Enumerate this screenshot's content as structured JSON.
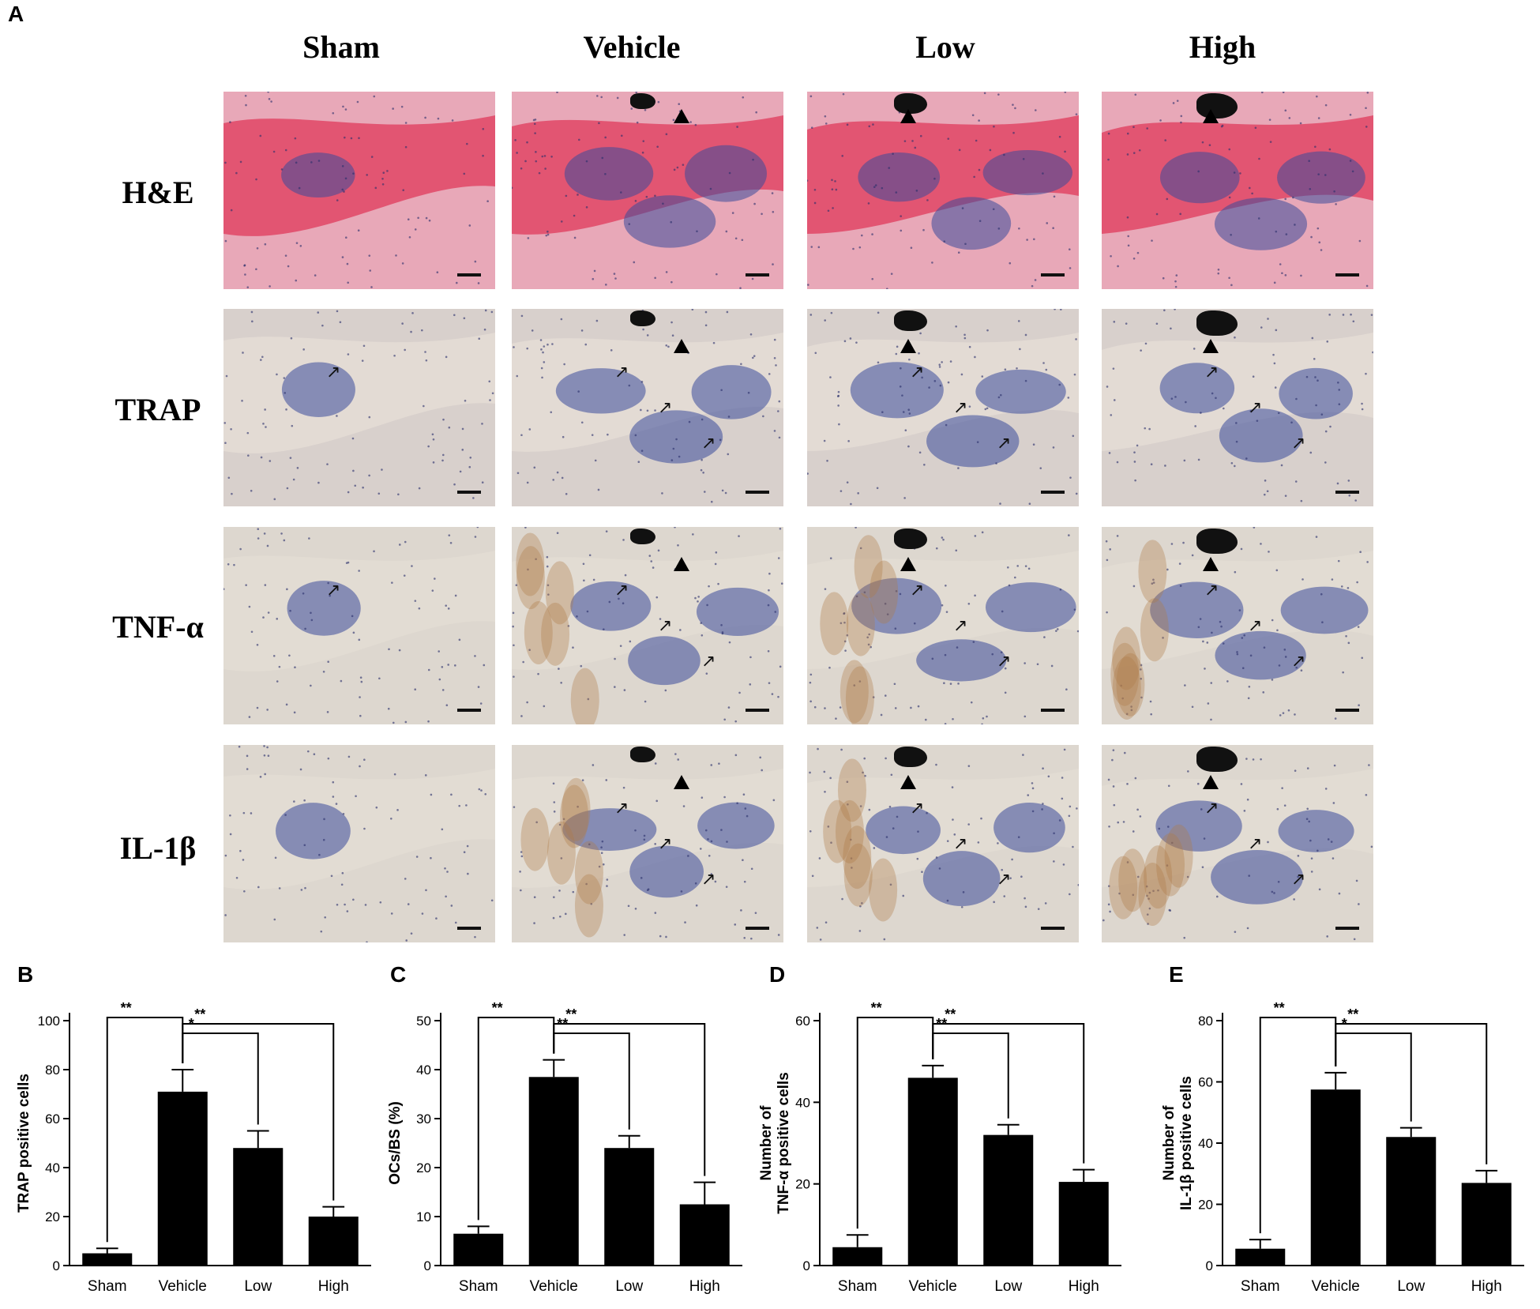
{
  "panel_labels": {
    "a": "A",
    "b": "B",
    "c": "C",
    "d": "D",
    "e": "E"
  },
  "columns": [
    "Sham",
    "Vehicle",
    "Low",
    "High"
  ],
  "rows": [
    "H&E",
    "TRAP",
    "TNF-α",
    "IL-1β"
  ],
  "colors": {
    "he_bg": "#e8a8b8",
    "he_bone": "#e2506e",
    "trap_bg": "#d8d0cc",
    "ihc_bg": "#ddd7cf",
    "marrow": "#3b4a9a",
    "brown": "#b07a48",
    "bar": "#000000"
  },
  "chart_data": [
    {
      "type": "bar",
      "panel": "B",
      "categories": [
        "Sham",
        "Vehicle",
        "Low",
        "High"
      ],
      "values": [
        5,
        71,
        48,
        20
      ],
      "errors": [
        2,
        9,
        7,
        4
      ],
      "ylabel": "TRAP positive cells",
      "ylim": [
        0,
        100
      ],
      "yticks": [
        0,
        20,
        40,
        60,
        80,
        100
      ],
      "significance": [
        {
          "from": 0,
          "to": 1,
          "label": "**"
        },
        {
          "from": 1,
          "to": 2,
          "label": "*"
        },
        {
          "from": 1,
          "to": 3,
          "label": "**"
        }
      ]
    },
    {
      "type": "bar",
      "panel": "C",
      "categories": [
        "Sham",
        "Vehicle",
        "Low",
        "High"
      ],
      "values": [
        6.5,
        38.5,
        24,
        12.5
      ],
      "errors": [
        1.5,
        3.5,
        2.5,
        4.5
      ],
      "ylabel": "OCs/BS (%)",
      "ylim": [
        0,
        50
      ],
      "yticks": [
        0,
        10,
        20,
        30,
        40,
        50
      ],
      "significance": [
        {
          "from": 0,
          "to": 1,
          "label": "**"
        },
        {
          "from": 1,
          "to": 2,
          "label": "**"
        },
        {
          "from": 1,
          "to": 3,
          "label": "**"
        }
      ]
    },
    {
      "type": "bar",
      "panel": "D",
      "categories": [
        "Sham",
        "Vehicle",
        "Low",
        "High"
      ],
      "values": [
        4.5,
        46,
        32,
        20.5
      ],
      "errors": [
        3,
        3,
        2.5,
        3
      ],
      "ylabel": "Number of TNF-α positive cells",
      "ylim": [
        0,
        60
      ],
      "yticks": [
        0,
        20,
        40,
        60
      ],
      "significance": [
        {
          "from": 0,
          "to": 1,
          "label": "**"
        },
        {
          "from": 1,
          "to": 2,
          "label": "**"
        },
        {
          "from": 1,
          "to": 3,
          "label": "**"
        }
      ]
    },
    {
      "type": "bar",
      "panel": "E",
      "categories": [
        "Sham",
        "Vehicle",
        "Low",
        "High"
      ],
      "values": [
        5.5,
        57.5,
        42,
        27
      ],
      "errors": [
        3,
        5.5,
        3,
        4
      ],
      "ylabel": "Number of IL-1β positive cells",
      "ylim": [
        0,
        80
      ],
      "yticks": [
        0,
        20,
        40,
        60,
        80
      ],
      "significance": [
        {
          "from": 0,
          "to": 1,
          "label": "**"
        },
        {
          "from": 1,
          "to": 2,
          "label": "*"
        },
        {
          "from": 1,
          "to": 3,
          "label": "**"
        }
      ]
    }
  ]
}
